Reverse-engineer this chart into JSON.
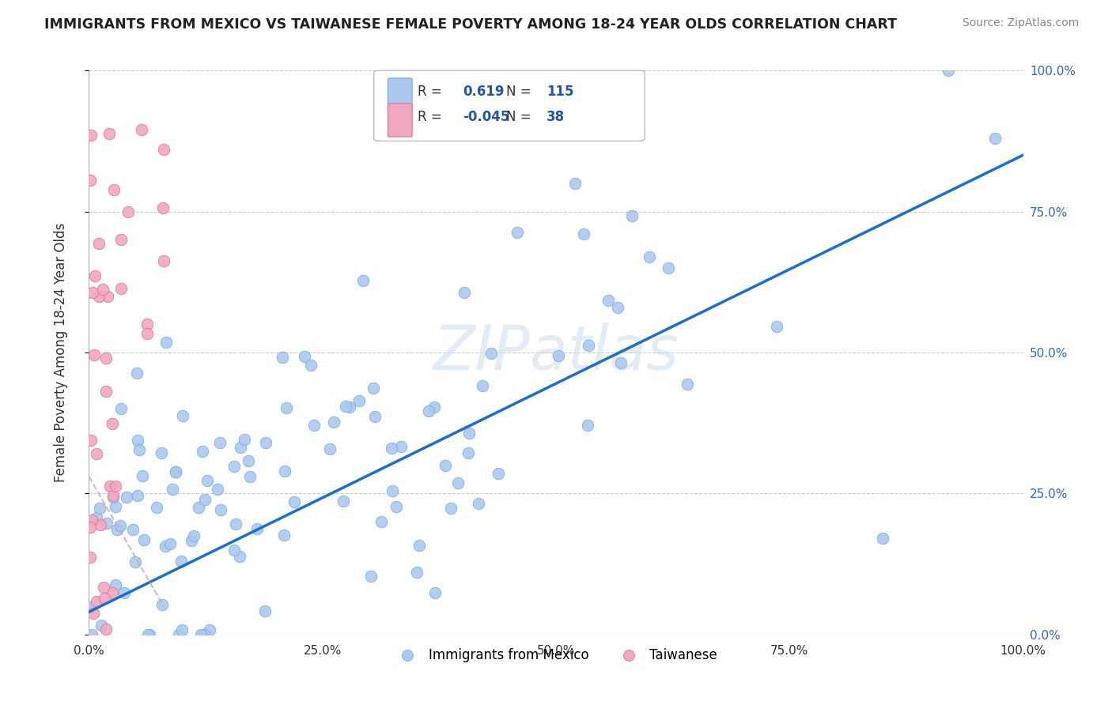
{
  "title": "IMMIGRANTS FROM MEXICO VS TAIWANESE FEMALE POVERTY AMONG 18-24 YEAR OLDS CORRELATION CHART",
  "source": "Source: ZipAtlas.com",
  "ylabel": "Female Poverty Among 18-24 Year Olds",
  "watermark": "ZIPatlas",
  "mexico_r": "0.619",
  "mexico_n": "115",
  "taiwan_r": "-0.045",
  "taiwan_n": "38",
  "mexico_color": "#adc8ed",
  "taiwan_color": "#f0a8c0",
  "mexico_edge_color": "#6aacee",
  "taiwan_edge_color": "#e07090",
  "trendline_mexico_color": "#1a6fcc",
  "trendline_taiwan_color": "#d8a0b0",
  "background_color": "#ffffff",
  "ytick_labels": [
    "",
    "25.0%",
    "50.0%",
    "75.0%",
    "100.0%"
  ],
  "ytick_right_labels": [
    "0.0%",
    "25.0%",
    "50.0%",
    "75.0%",
    "100.0%"
  ],
  "xtick_labels": [
    "0.0%",
    "25.0%",
    "50.0%",
    "75.0%",
    "100.0%"
  ],
  "grid_color": "#cccccc",
  "legend_label_mexico": "Immigrants from Mexico",
  "legend_label_taiwan": "Taiwanese",
  "r_label_color": "#2255aa",
  "n_label_color": "#2255aa"
}
